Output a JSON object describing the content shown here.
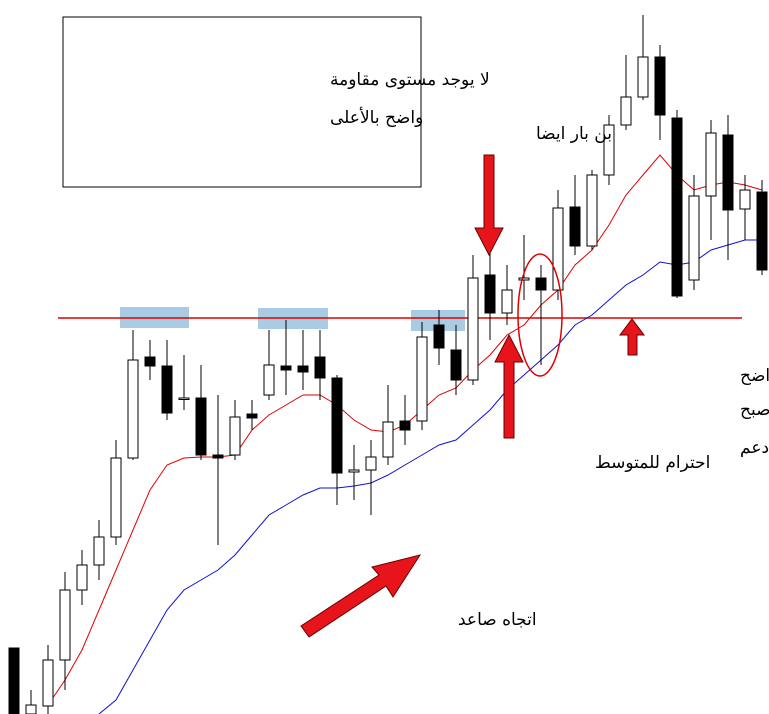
{
  "chart_data": {
    "type": "candlestick",
    "ylim": [
      0,
      71.4
    ],
    "up_color": "#ffffff",
    "down_color": "#000000",
    "open": [
      6.6,
      0,
      0.8,
      5.4,
      12.4,
      14.9,
      17.7,
      25.6,
      35.7,
      34.8,
      31.6,
      31.6,
      25.9,
      25.9,
      30.0,
      31.9,
      34.8,
      34.8,
      35.7,
      33.6,
      24.2,
      24.4,
      25.7,
      29.3,
      29.3,
      38.9,
      36.4,
      33.4,
      43.9,
      40.1,
      43.4,
      43.6,
      42.4,
      50.7,
      46.8,
      53.9,
      58.9,
      61.7,
      65.7,
      59.6,
      43.4,
      51.8,
      57.9,
      50.5,
      52.2
    ],
    "high": [
      6.6,
      2.4,
      6.9,
      14.2,
      16.4,
      19.4,
      27.4,
      38.4,
      37.4,
      37.4,
      35.9,
      34.9,
      31.9,
      31.4,
      31.4,
      38.4,
      39.4,
      38.4,
      38.4,
      33.9,
      26.9,
      27.4,
      32.9,
      31.9,
      39.2,
      40.4,
      38.9,
      45.9,
      46.4,
      44.9,
      47.9,
      44.9,
      52.4,
      53.9,
      54.4,
      59.9,
      65.9,
      69.9,
      66.9,
      60.4,
      53.9,
      59.4,
      59.9,
      53.9,
      53.4
    ],
    "low": [
      0,
      0,
      0,
      2.4,
      10.9,
      13.4,
      16.9,
      25.4,
      33.4,
      29.4,
      30.4,
      25.4,
      16.9,
      25.4,
      28.4,
      31.4,
      31.9,
      32.4,
      31.4,
      20.9,
      21.4,
      19.9,
      24.9,
      26.9,
      28.4,
      34.9,
      31.9,
      32.9,
      37.4,
      38.9,
      41.4,
      34.9,
      41.4,
      45.9,
      46.4,
      52.9,
      58.4,
      61.4,
      57.4,
      41.6,
      42.4,
      47.4,
      45.4,
      47.4,
      43.9
    ],
    "close": [
      0,
      0.9,
      5.4,
      12.4,
      14.9,
      17.7,
      25.6,
      35.4,
      34.8,
      30.1,
      31.6,
      25.9,
      25.6,
      29.7,
      29.6,
      34.9,
      34.4,
      34.2,
      33.6,
      24.1,
      24.4,
      25.7,
      29.2,
      28.4,
      37.7,
      36.6,
      33.4,
      43.6,
      40.1,
      42.4,
      43.6,
      42.4,
      50.6,
      46.8,
      53.9,
      58.9,
      61.7,
      65.7,
      59.9,
      41.8,
      51.8,
      58.1,
      50.4,
      52.4,
      44.4
    ],
    "series": [
      {
        "color": "#e00000",
        "values": [
          null,
          null,
          0.9,
          3.4,
          6.4,
          10.4,
          14.4,
          18.4,
          22.4,
          24.9,
          25.6,
          25.7,
          25.7,
          25.9,
          28.4,
          29.9,
          30.9,
          31.9,
          31.9,
          30.9,
          29.4,
          28.4,
          28.2,
          28.9,
          30.4,
          31.9,
          32.6,
          34.4,
          35.9,
          37.9,
          38.9,
          40.9,
          42.4,
          44.9,
          46.4,
          48.9,
          51.9,
          53.9,
          55.9,
          53.9,
          52.4,
          52.9,
          53.2,
          52.9,
          52.4
        ]
      },
      {
        "color": "#1010d0",
        "values": [
          null,
          null,
          null,
          null,
          null,
          0,
          1.4,
          4.4,
          7.4,
          10.4,
          12.4,
          13.4,
          14.4,
          15.9,
          17.9,
          19.9,
          20.9,
          21.9,
          22.6,
          22.6,
          22.8,
          23.1,
          23.9,
          24.9,
          25.9,
          26.9,
          27.4,
          28.9,
          30.4,
          32.4,
          33.9,
          35.4,
          36.9,
          38.9,
          39.9,
          41.4,
          42.9,
          43.9,
          45.2,
          44.9,
          45.2,
          46.4,
          46.9,
          47.4,
          47.4
        ]
      }
    ],
    "level": {
      "value": 39.6,
      "color": "#e00000"
    },
    "annotations": [
      {
        "lines": [
          "لا يوجد مستوى مقاومة",
          "واضح بالأعلى"
        ]
      },
      {
        "lines": [
          "بن بار ايضا"
        ]
      },
      {
        "lines": [
          "احترام للمتوسط"
        ]
      },
      {
        "lines": [
          "تبادل ادوار واضح",
          "لخط مقاومة اصبح",
          "دعم"
        ]
      },
      {
        "lines": [
          "اتجاه صاعد"
        ]
      }
    ]
  }
}
